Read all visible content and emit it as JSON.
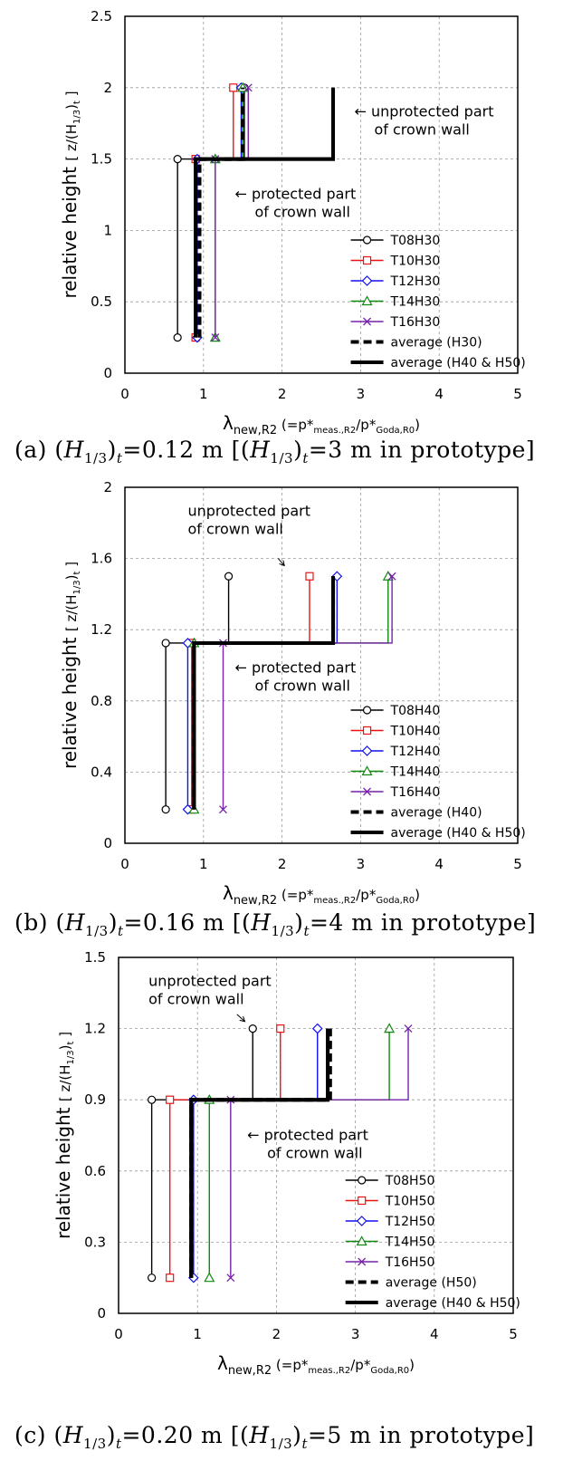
{
  "chart_data": [
    {
      "type": "line",
      "panel": "a",
      "ylabel": "relative height",
      "ylabel_unit": "[ z/(H",
      "ylabel_sub1": "1/3",
      "ylabel_sub2": "t",
      "xlabel_main": "λ",
      "xlabel_sub": "new,R2",
      "xlabel_p1": "(=p*",
      "xlabel_p1_sub": "meas.,R2",
      "xlabel_p2": "/p*",
      "xlabel_p2_sub": "Goda,R0",
      "xlabel_end": ")",
      "xlim": [
        0,
        5
      ],
      "ylim": [
        0,
        2.5
      ],
      "xticks": [
        "0",
        "1",
        "2",
        "3",
        "4",
        "5"
      ],
      "yticks": [
        "0",
        "0.5",
        "1",
        "1.5",
        "2",
        "2.5"
      ],
      "grid": true,
      "legend_position": "bottom-right",
      "annotations": [
        {
          "text1": "← unprotected part",
          "text2": "of crown wall",
          "x": 2.92,
          "y": 1.8
        },
        {
          "text1": "← protected part",
          "text2": "of crown wall",
          "x": 1.4,
          "y": 1.22
        }
      ],
      "series": [
        {
          "name": "T08H30",
          "color": "#000000",
          "marker": "circle",
          "points": [
            [
              0.67,
              0.25
            ],
            [
              0.67,
              1.5
            ],
            [
              1.52,
              1.5
            ],
            [
              1.52,
              2.0
            ]
          ]
        },
        {
          "name": "T10H30",
          "color": "#ee1111",
          "marker": "square",
          "points": [
            [
              0.9,
              0.25
            ],
            [
              0.9,
              1.5
            ],
            [
              1.38,
              1.5
            ],
            [
              1.38,
              2.0
            ]
          ]
        },
        {
          "name": "T12H30",
          "color": "#1111ee",
          "marker": "diamond",
          "points": [
            [
              0.92,
              0.25
            ],
            [
              0.92,
              1.5
            ],
            [
              1.48,
              1.5
            ],
            [
              1.48,
              2.0
            ]
          ]
        },
        {
          "name": "T14H30",
          "color": "#118811",
          "marker": "triangle",
          "points": [
            [
              1.15,
              0.25
            ],
            [
              1.15,
              1.5
            ],
            [
              1.5,
              1.5
            ],
            [
              1.5,
              2.0
            ]
          ]
        },
        {
          "name": "T16H30",
          "color": "#7722aa",
          "marker": "x",
          "points": [
            [
              1.15,
              0.25
            ],
            [
              1.15,
              1.5
            ],
            [
              1.57,
              1.5
            ],
            [
              1.57,
              2.0
            ]
          ]
        },
        {
          "name": "average (H30)",
          "color": "#000000",
          "style": "dashed",
          "points": [
            [
              0.95,
              0.25
            ],
            [
              0.95,
              1.5
            ],
            [
              1.5,
              1.5
            ],
            [
              1.5,
              2.0
            ]
          ]
        },
        {
          "name": "average (H40 & H50)",
          "color": "#000000",
          "style": "thick",
          "points": [
            [
              0.9,
              0.25
            ],
            [
              0.9,
              1.5
            ],
            [
              2.65,
              1.5
            ],
            [
              2.65,
              2.0
            ]
          ]
        }
      ]
    },
    {
      "type": "line",
      "panel": "b",
      "ylabel": "relative height",
      "ylabel_unit": "[ z/(H",
      "ylabel_sub1": "1/3",
      "ylabel_sub2": "t",
      "xlabel_main": "λ",
      "xlabel_sub": "new,R2",
      "xlabel_p1": "(=p*",
      "xlabel_p1_sub": "meas.,R2",
      "xlabel_p2": "/p*",
      "xlabel_p2_sub": "Goda,R0",
      "xlabel_end": ")",
      "xlim": [
        0,
        5
      ],
      "ylim": [
        0,
        2
      ],
      "xticks": [
        "0",
        "1",
        "2",
        "3",
        "4",
        "5"
      ],
      "yticks": [
        "0",
        "0.4",
        "0.8",
        "1.2",
        "1.6",
        "2"
      ],
      "grid": true,
      "legend_position": "bottom-right",
      "annotations": [
        {
          "text1": "unprotected part",
          "text2": "of crown wall",
          "x": 0.8,
          "y": 1.84,
          "arrow": [
            [
              1.95,
              1.6
            ],
            [
              2.03,
              1.56
            ]
          ]
        },
        {
          "text1": "← protected part",
          "text2": "of crown wall",
          "x": 1.4,
          "y": 0.96
        }
      ],
      "series": [
        {
          "name": "T08H40",
          "color": "#000000",
          "marker": "circle",
          "points": [
            [
              0.52,
              0.19
            ],
            [
              0.52,
              1.125
            ],
            [
              1.32,
              1.125
            ],
            [
              1.32,
              1.5
            ]
          ]
        },
        {
          "name": "T10H40",
          "color": "#ee1111",
          "marker": "square",
          "points": [
            [
              0.85,
              0.19
            ],
            [
              0.85,
              1.125
            ],
            [
              2.35,
              1.125
            ],
            [
              2.35,
              1.5
            ]
          ]
        },
        {
          "name": "T12H40",
          "color": "#1111ee",
          "marker": "diamond",
          "points": [
            [
              0.8,
              0.19
            ],
            [
              0.8,
              1.125
            ],
            [
              2.7,
              1.125
            ],
            [
              2.7,
              1.5
            ]
          ]
        },
        {
          "name": "T14H40",
          "color": "#118811",
          "marker": "triangle",
          "points": [
            [
              0.88,
              0.19
            ],
            [
              0.88,
              1.125
            ],
            [
              3.35,
              1.125
            ],
            [
              3.35,
              1.5
            ]
          ]
        },
        {
          "name": "T16H40",
          "color": "#7722aa",
          "marker": "x",
          "points": [
            [
              1.25,
              0.19
            ],
            [
              1.25,
              1.125
            ],
            [
              3.4,
              1.125
            ],
            [
              3.4,
              1.5
            ]
          ]
        },
        {
          "name": "average (H40)",
          "color": "#000000",
          "style": "dashed",
          "points": [
            [
              0.88,
              0.19
            ],
            [
              0.88,
              1.125
            ],
            [
              2.65,
              1.125
            ],
            [
              2.65,
              1.5
            ]
          ]
        },
        {
          "name": "average (H40 & H50)",
          "color": "#000000",
          "style": "thick",
          "points": [
            [
              0.88,
              0.19
            ],
            [
              0.88,
              1.125
            ],
            [
              2.65,
              1.125
            ],
            [
              2.65,
              1.5
            ]
          ]
        }
      ]
    },
    {
      "type": "line",
      "panel": "c",
      "ylabel": "relative height",
      "ylabel_unit": "[ z/(H",
      "ylabel_sub1": "1/3",
      "ylabel_sub2": "t",
      "xlabel_main": "λ",
      "xlabel_sub": "new,R2",
      "xlabel_p1": "(=p*",
      "xlabel_p1_sub": "meas.,R2",
      "xlabel_p2": "/p*",
      "xlabel_p2_sub": "Goda,R0",
      "xlabel_end": ")",
      "xlim": [
        0,
        5
      ],
      "ylim": [
        0,
        1.5
      ],
      "xticks": [
        "0",
        "1",
        "2",
        "3",
        "4",
        "5"
      ],
      "yticks": [
        "0",
        "0.3",
        "0.6",
        "0.9",
        "1.2",
        "1.5"
      ],
      "grid": true,
      "legend_position": "bottom-right",
      "annotations": [
        {
          "text1": "unprotected part",
          "text2": "of crown wall",
          "x": 0.38,
          "y": 1.38,
          "arrow": [
            [
              1.5,
              1.26
            ],
            [
              1.6,
              1.23
            ]
          ]
        },
        {
          "text1": "← protected part",
          "text2": "of crown wall",
          "x": 1.63,
          "y": 0.73
        }
      ],
      "series": [
        {
          "name": "T08H50",
          "color": "#000000",
          "marker": "circle",
          "points": [
            [
              0.42,
              0.15
            ],
            [
              0.42,
              0.9
            ],
            [
              1.7,
              0.9
            ],
            [
              1.7,
              1.2
            ]
          ]
        },
        {
          "name": "T10H50",
          "color": "#ee1111",
          "marker": "square",
          "points": [
            [
              0.65,
              0.15
            ],
            [
              0.65,
              0.9
            ],
            [
              2.05,
              0.9
            ],
            [
              2.05,
              1.2
            ]
          ]
        },
        {
          "name": "T12H50",
          "color": "#1111ee",
          "marker": "diamond",
          "points": [
            [
              0.95,
              0.15
            ],
            [
              0.95,
              0.9
            ],
            [
              2.52,
              0.9
            ],
            [
              2.52,
              1.2
            ]
          ]
        },
        {
          "name": "T14H50",
          "color": "#118811",
          "marker": "triangle",
          "points": [
            [
              1.15,
              0.15
            ],
            [
              1.15,
              0.9
            ],
            [
              3.43,
              0.9
            ],
            [
              3.43,
              1.2
            ]
          ]
        },
        {
          "name": "T16H50",
          "color": "#7722aa",
          "marker": "x",
          "points": [
            [
              1.42,
              0.15
            ],
            [
              1.42,
              0.9
            ],
            [
              3.67,
              0.9
            ],
            [
              3.67,
              1.2
            ]
          ]
        },
        {
          "name": "average (H50)",
          "color": "#000000",
          "style": "dashed",
          "points": [
            [
              0.92,
              0.15
            ],
            [
              0.92,
              0.9
            ],
            [
              2.68,
              0.9
            ],
            [
              2.68,
              1.2
            ]
          ]
        },
        {
          "name": "average (H40 & H50)",
          "color": "#000000",
          "style": "thick",
          "points": [
            [
              0.92,
              0.15
            ],
            [
              0.92,
              0.9
            ],
            [
              2.65,
              0.9
            ],
            [
              2.65,
              1.2
            ]
          ]
        }
      ]
    }
  ],
  "captions": [
    {
      "label": "(a) ",
      "h": "H",
      "sub": "1/3",
      "t": "t",
      "eq": "=0.12 m [",
      "eq2": "=3 m in prototype]"
    },
    {
      "label": "(b) ",
      "h": "H",
      "sub": "1/3",
      "t": "t",
      "eq": "=0.16 m [",
      "eq2": "=4 m in prototype]"
    },
    {
      "label": "(c) ",
      "h": "H",
      "sub": "1/3",
      "t": "t",
      "eq": "=0.20 m [",
      "eq2": "=5 m in prototype]"
    }
  ]
}
